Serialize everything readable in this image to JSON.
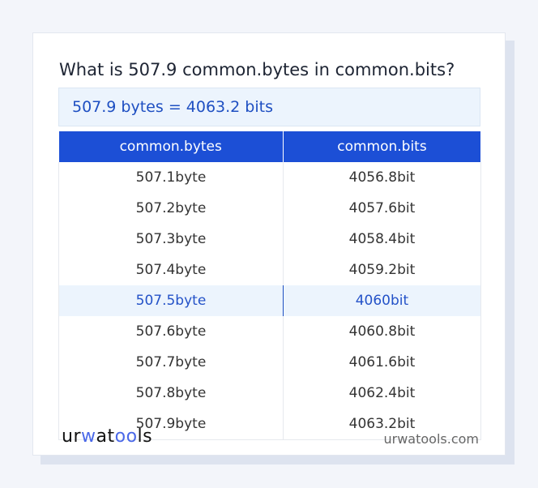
{
  "title": "What is 507.9 common.bytes in common.bits?",
  "result": "507.9 bytes = 4063.2 bits",
  "table": {
    "headers": [
      "common.bytes",
      "common.bits"
    ],
    "rows": [
      [
        "507.1byte",
        "4056.8bit"
      ],
      [
        "507.2byte",
        "4057.6bit"
      ],
      [
        "507.3byte",
        "4058.4bit"
      ],
      [
        "507.4byte",
        "4059.2bit"
      ],
      [
        "507.5byte",
        "4060bit"
      ],
      [
        "507.6byte",
        "4060.8bit"
      ],
      [
        "507.7byte",
        "4061.6bit"
      ],
      [
        "507.8byte",
        "4062.4bit"
      ],
      [
        "507.9byte",
        "4063.2bit"
      ]
    ],
    "highlighted_row": 4
  },
  "footer": {
    "logo": "urwatools",
    "site": "urwatools.com"
  },
  "colors": {
    "accent": "#1c4fd6",
    "highlight": "#ecf4fd"
  }
}
